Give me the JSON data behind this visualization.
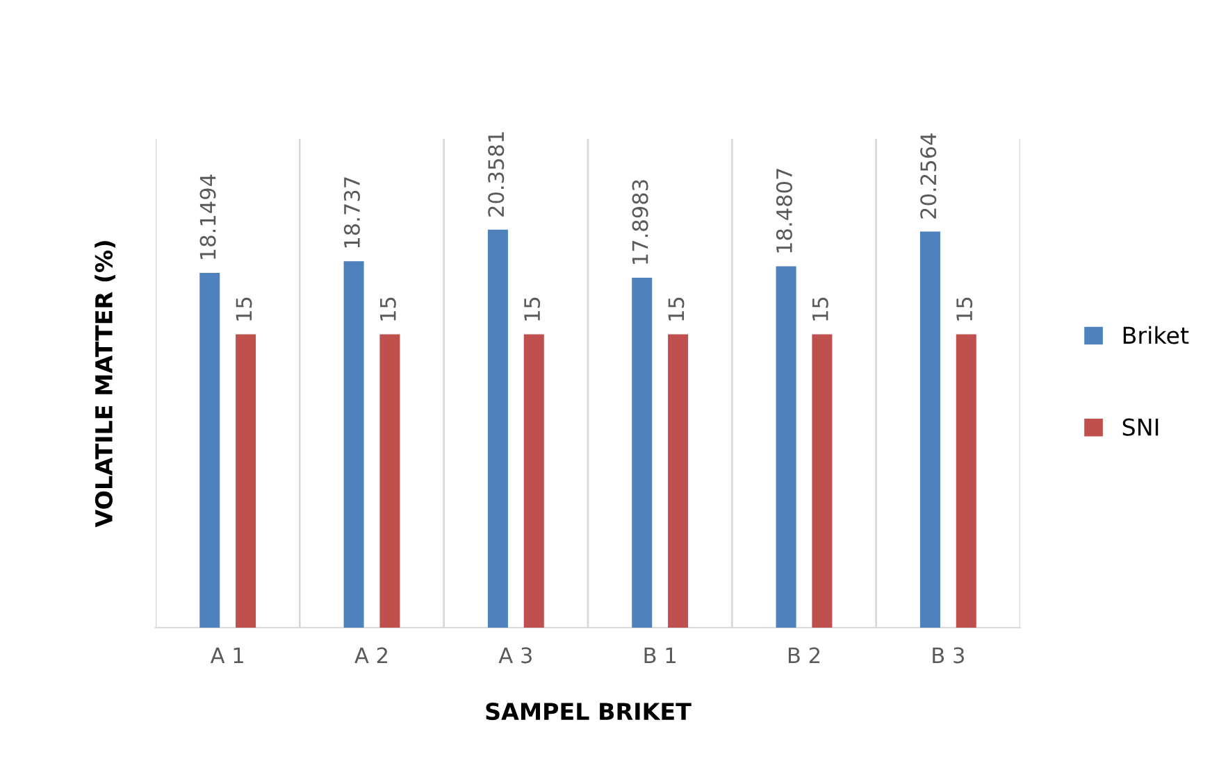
{
  "chart_data": {
    "type": "bar",
    "xlabel": "SAMPEL BRIKET",
    "ylabel": "VOLATILE MATTER (%)",
    "categories": [
      "A 1",
      "A 2",
      "A 3",
      "B 1",
      "B 2",
      "B 3"
    ],
    "series": [
      {
        "name": "Briket",
        "color": "#4f81bd",
        "values": [
          18.1494,
          18.737,
          20.3581,
          17.8983,
          18.4807,
          20.2564
        ]
      },
      {
        "name": "SNI",
        "color": "#c0504d",
        "values": [
          15,
          15,
          15,
          15,
          15,
          15
        ]
      }
    ],
    "ylim": [
      0,
      25
    ],
    "tick_labels": "x",
    "grid": "x",
    "legend": "right",
    "data_labels": true
  }
}
